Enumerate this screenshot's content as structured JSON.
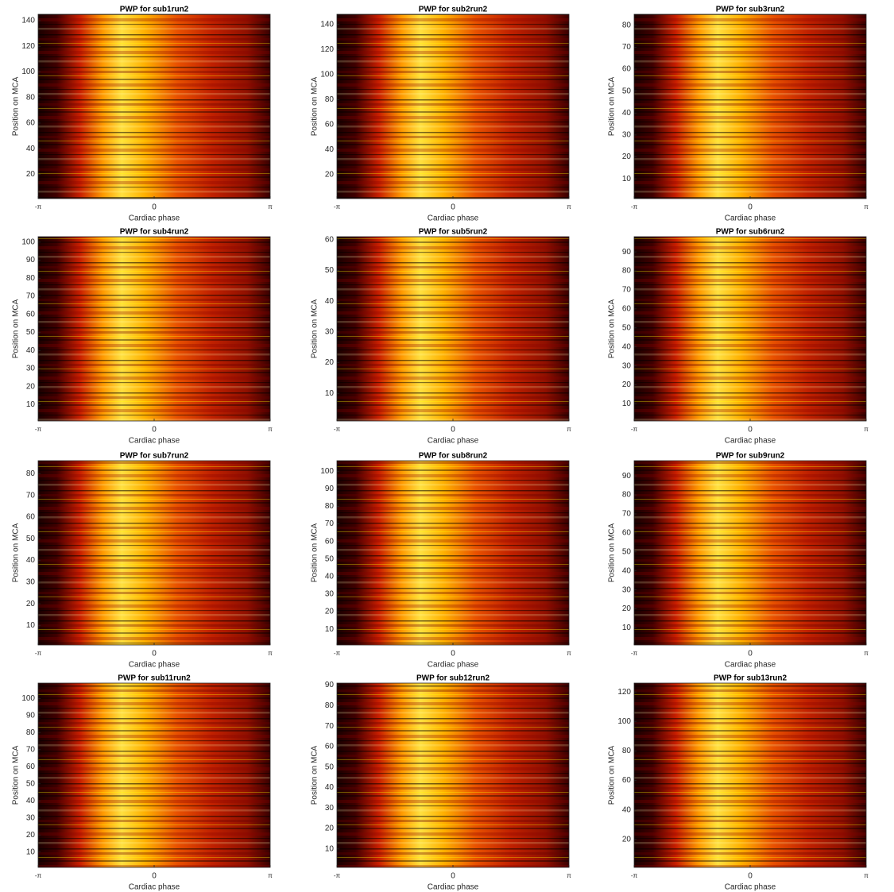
{
  "chart_data": [
    {
      "type": "heatmap",
      "title": "PWP for sub1run2",
      "xlabel": "Cardiac phase",
      "ylabel": "Position on MCA",
      "xlim": [
        -3.14159,
        3.14159
      ],
      "xticks": [
        {
          "value": -3.14159,
          "label": "-π"
        },
        0,
        {
          "value": 3.14159,
          "label": "π"
        }
      ],
      "ylim": [
        1,
        145
      ],
      "yticks": [
        20,
        40,
        60,
        80,
        100,
        120,
        140
      ]
    },
    {
      "type": "heatmap",
      "title": "PWP for sub2run2",
      "xlabel": "Cardiac phase",
      "ylabel": "Position on MCA",
      "xlim": [
        -3.14159,
        3.14159
      ],
      "xticks": [
        {
          "value": -3.14159,
          "label": "-π"
        },
        0,
        {
          "value": 3.14159,
          "label": "π"
        }
      ],
      "ylim": [
        1,
        148
      ],
      "yticks": [
        20,
        40,
        60,
        80,
        100,
        120,
        140
      ]
    },
    {
      "type": "heatmap",
      "title": "PWP for sub3run2",
      "xlabel": "Cardiac phase",
      "ylabel": "Position on MCA",
      "xlim": [
        -3.14159,
        3.14159
      ],
      "xticks": [
        {
          "value": -3.14159,
          "label": "-π"
        },
        0,
        {
          "value": 3.14159,
          "label": "π"
        }
      ],
      "ylim": [
        1,
        85
      ],
      "yticks": [
        10,
        20,
        30,
        40,
        50,
        60,
        70,
        80
      ]
    },
    {
      "type": "heatmap",
      "title": "PWP for sub4run2",
      "xlabel": "Cardiac phase",
      "ylabel": "Position on MCA",
      "xlim": [
        -3.14159,
        3.14159
      ],
      "xticks": [
        {
          "value": -3.14159,
          "label": "-π"
        },
        0,
        {
          "value": 3.14159,
          "label": "π"
        }
      ],
      "ylim": [
        1,
        103
      ],
      "yticks": [
        10,
        20,
        30,
        40,
        50,
        60,
        70,
        80,
        90,
        100
      ]
    },
    {
      "type": "heatmap",
      "title": "PWP for sub5run2",
      "xlabel": "Cardiac phase",
      "ylabel": "Position on MCA",
      "xlim": [
        -3.14159,
        3.14159
      ],
      "xticks": [
        {
          "value": -3.14159,
          "label": "-π"
        },
        0,
        {
          "value": 3.14159,
          "label": "π"
        }
      ],
      "ylim": [
        1,
        61
      ],
      "yticks": [
        10,
        20,
        30,
        40,
        50,
        60
      ]
    },
    {
      "type": "heatmap",
      "title": "PWP for sub6run2",
      "xlabel": "Cardiac phase",
      "ylabel": "Position on MCA",
      "xlim": [
        -3.14159,
        3.14159
      ],
      "xticks": [
        {
          "value": -3.14159,
          "label": "-π"
        },
        0,
        {
          "value": 3.14159,
          "label": "π"
        }
      ],
      "ylim": [
        1,
        98
      ],
      "yticks": [
        10,
        20,
        30,
        40,
        50,
        60,
        70,
        80,
        90
      ]
    },
    {
      "type": "heatmap",
      "title": "PWP for sub7run2",
      "xlabel": "Cardiac phase",
      "ylabel": "Position on MCA",
      "xlim": [
        -3.14159,
        3.14159
      ],
      "xticks": [
        {
          "value": -3.14159,
          "label": "-π"
        },
        0,
        {
          "value": 3.14159,
          "label": "π"
        }
      ],
      "ylim": [
        1,
        86
      ],
      "yticks": [
        10,
        20,
        30,
        40,
        50,
        60,
        70,
        80
      ]
    },
    {
      "type": "heatmap",
      "title": "PWP for sub8run2",
      "xlabel": "Cardiac phase",
      "ylabel": "Position on MCA",
      "xlim": [
        -3.14159,
        3.14159
      ],
      "xticks": [
        {
          "value": -3.14159,
          "label": "-π"
        },
        0,
        {
          "value": 3.14159,
          "label": "π"
        }
      ],
      "ylim": [
        1,
        106
      ],
      "yticks": [
        10,
        20,
        30,
        40,
        50,
        60,
        70,
        80,
        90,
        100
      ]
    },
    {
      "type": "heatmap",
      "title": "PWP for sub9run2",
      "xlabel": "Cardiac phase",
      "ylabel": "Position on MCA",
      "xlim": [
        -3.14159,
        3.14159
      ],
      "xticks": [
        {
          "value": -3.14159,
          "label": "-π"
        },
        0,
        {
          "value": 3.14159,
          "label": "π"
        }
      ],
      "ylim": [
        1,
        98
      ],
      "yticks": [
        10,
        20,
        30,
        40,
        50,
        60,
        70,
        80,
        90
      ]
    },
    {
      "type": "heatmap",
      "title": "PWP for sub11run2",
      "xlabel": "Cardiac phase",
      "ylabel": "Position on MCA",
      "xlim": [
        -3.14159,
        3.14159
      ],
      "xticks": [
        {
          "value": -3.14159,
          "label": "-π"
        },
        0,
        {
          "value": 3.14159,
          "label": "π"
        }
      ],
      "ylim": [
        1,
        109
      ],
      "yticks": [
        10,
        20,
        30,
        40,
        50,
        60,
        70,
        80,
        90,
        100
      ]
    },
    {
      "type": "heatmap",
      "title": "PWP for sub12run2",
      "xlabel": "Cardiac phase",
      "ylabel": "Position on MCA",
      "xlim": [
        -3.14159,
        3.14159
      ],
      "xticks": [
        {
          "value": -3.14159,
          "label": "-π"
        },
        0,
        {
          "value": 3.14159,
          "label": "π"
        }
      ],
      "ylim": [
        1,
        91
      ],
      "yticks": [
        10,
        20,
        30,
        40,
        50,
        60,
        70,
        80,
        90
      ]
    },
    {
      "type": "heatmap",
      "title": "PWP for sub13run2",
      "xlabel": "Cardiac phase",
      "ylabel": "Position on MCA",
      "xlim": [
        -3.14159,
        3.14159
      ],
      "xticks": [
        {
          "value": -3.14159,
          "label": "-π"
        },
        0,
        {
          "value": 3.14159,
          "label": "π"
        }
      ],
      "ylim": [
        1,
        126
      ],
      "yticks": [
        20,
        40,
        60,
        80,
        100,
        120
      ]
    }
  ]
}
